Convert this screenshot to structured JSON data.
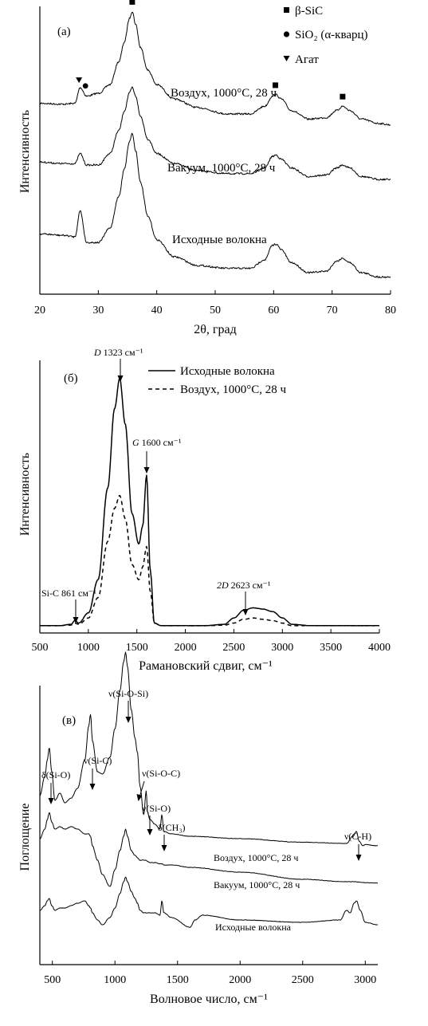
{
  "chart_data": [
    {
      "type": "line",
      "panel": "(а)",
      "xlabel": "2θ, град",
      "ylabel": "Интенсивность",
      "xlim": [
        20,
        80
      ],
      "xticks": [
        20,
        30,
        40,
        50,
        60,
        70,
        80
      ],
      "legend": [
        {
          "marker": "square",
          "label": "β-SiC"
        },
        {
          "marker": "circle",
          "label": "SiO₂ (α-кварц)"
        },
        {
          "marker": "triangle-down",
          "label": "Агат"
        }
      ],
      "series": [
        {
          "name": "Воздух, 1000°C, 28 ч",
          "x": [
            20,
            24,
            26,
            26.9,
            28,
            30,
            32,
            33.5,
            34.5,
            35.3,
            35.8,
            36.4,
            37.2,
            38.5,
            40,
            43,
            47,
            52,
            56,
            58.5,
            59.8,
            60.4,
            61.3,
            63,
            66,
            69,
            70.8,
            71.8,
            73,
            75,
            78,
            80
          ],
          "y": [
            0.665,
            0.662,
            0.665,
            0.72,
            0.69,
            0.7,
            0.73,
            0.81,
            0.88,
            0.96,
            0.985,
            0.94,
            0.86,
            0.78,
            0.73,
            0.68,
            0.65,
            0.628,
            0.628,
            0.655,
            0.69,
            0.695,
            0.68,
            0.64,
            0.61,
            0.615,
            0.64,
            0.655,
            0.64,
            0.61,
            0.595,
            0.59
          ]
        },
        {
          "name": "Вакуум, 1000°C, 28 ч",
          "x": [
            20,
            24,
            26,
            26.9,
            28,
            30,
            32,
            33.5,
            34.5,
            35.3,
            35.8,
            36.4,
            37.2,
            38.5,
            40,
            43,
            47,
            52,
            56,
            58.5,
            59.8,
            60.4,
            61.3,
            63,
            66,
            69,
            70.8,
            71.8,
            73,
            75,
            78,
            80
          ],
          "y": [
            0.46,
            0.455,
            0.455,
            0.49,
            0.45,
            0.45,
            0.49,
            0.57,
            0.64,
            0.7,
            0.72,
            0.69,
            0.62,
            0.54,
            0.49,
            0.455,
            0.43,
            0.42,
            0.42,
            0.44,
            0.48,
            0.485,
            0.47,
            0.44,
            0.41,
            0.415,
            0.44,
            0.45,
            0.44,
            0.41,
            0.4,
            0.4
          ]
        },
        {
          "name": "Исходные волокна",
          "x": [
            20,
            24,
            26,
            26.9,
            28,
            30,
            32,
            33.5,
            34.5,
            35.3,
            35.8,
            36.4,
            37.2,
            38.5,
            40,
            43,
            47,
            52,
            56,
            58.5,
            59.8,
            60.4,
            61.3,
            63,
            66,
            69,
            70.8,
            71.8,
            73,
            75,
            78,
            80
          ],
          "y": [
            0.21,
            0.205,
            0.2,
            0.29,
            0.18,
            0.18,
            0.23,
            0.34,
            0.44,
            0.53,
            0.56,
            0.5,
            0.39,
            0.27,
            0.19,
            0.13,
            0.1,
            0.09,
            0.09,
            0.12,
            0.17,
            0.175,
            0.155,
            0.11,
            0.075,
            0.08,
            0.115,
            0.125,
            0.11,
            0.075,
            0.06,
            0.06
          ]
        }
      ],
      "markers": [
        {
          "type": "triangle-down",
          "x": 26.7
        },
        {
          "type": "circle",
          "x": 27.8
        },
        {
          "type": "square",
          "x": 35.8
        },
        {
          "type": "square",
          "x": 60.3
        },
        {
          "type": "square",
          "x": 71.8
        }
      ]
    },
    {
      "type": "line",
      "panel": "(б)",
      "xlabel": "Рамановский сдвиг, см⁻¹",
      "ylabel": "Интенсивность",
      "xlim": [
        500,
        4000
      ],
      "xticks": [
        500,
        1000,
        1500,
        2000,
        2500,
        3000,
        3500,
        4000
      ],
      "series": [
        {
          "name": "Исходные волокна",
          "style": "solid",
          "x": [
            500,
            700,
            820,
            861,
            900,
            1000,
            1100,
            1200,
            1270,
            1323,
            1380,
            1450,
            1520,
            1560,
            1600,
            1640,
            1680,
            1750,
            2200,
            2400,
            2500,
            2600,
            2700,
            2800,
            2900,
            3000,
            3100,
            3300,
            4000
          ],
          "y": [
            0.01,
            0.01,
            0.015,
            0.03,
            0.02,
            0.06,
            0.19,
            0.55,
            0.86,
            0.98,
            0.8,
            0.45,
            0.33,
            0.4,
            0.6,
            0.22,
            0.02,
            0.01,
            0.01,
            0.015,
            0.04,
            0.07,
            0.08,
            0.075,
            0.065,
            0.04,
            0.015,
            0.01,
            0.01
          ]
        },
        {
          "name": "Воздух, 1000°C, 28 ч",
          "style": "dashed",
          "x": [
            500,
            700,
            820,
            861,
            900,
            1000,
            1100,
            1200,
            1270,
            1323,
            1380,
            1450,
            1520,
            1560,
            1600,
            1640,
            1680,
            1750,
            2200,
            2400,
            2500,
            2600,
            2700,
            2800,
            2900,
            3000,
            3100,
            3300,
            4000
          ],
          "y": [
            0.01,
            0.01,
            0.012,
            0.02,
            0.015,
            0.04,
            0.12,
            0.34,
            0.47,
            0.52,
            0.43,
            0.25,
            0.19,
            0.24,
            0.32,
            0.14,
            0.02,
            0.01,
            0.01,
            0.012,
            0.02,
            0.035,
            0.04,
            0.035,
            0.03,
            0.02,
            0.01,
            0.01,
            0.01
          ]
        }
      ],
      "annotations": [
        {
          "label_prefix": "D",
          "label": " 1323 см⁻¹",
          "x": 1323
        },
        {
          "label_prefix": "G",
          "label": " 1600 см⁻¹",
          "x": 1600
        },
        {
          "label_prefix": "",
          "label": "Si-C 861 см⁻¹",
          "x": 861
        },
        {
          "label_prefix": "2D",
          "label": " 2623 см⁻¹",
          "x": 2623
        }
      ]
    },
    {
      "type": "line",
      "panel": "(в)",
      "xlabel": "Волновое число, см⁻¹",
      "ylabel": "Поглощение",
      "xlim": [
        400,
        3100
      ],
      "xticks": [
        500,
        1000,
        1500,
        2000,
        2500,
        3000
      ],
      "series": [
        {
          "name": "Воздух, 1000°C, 28 ч",
          "x": [
            400,
            440,
            460,
            475,
            495,
            520,
            560,
            600,
            650,
            700,
            760,
            790,
            805,
            820,
            860,
            900,
            960,
            1000,
            1040,
            1070,
            1085,
            1100,
            1130,
            1160,
            1180,
            1200,
            1230,
            1250,
            1260,
            1280,
            1320,
            1360,
            1375,
            1390,
            1450,
            1600,
            2000,
            2500,
            2850,
            2900,
            2930,
            2950,
            2980,
            3000,
            3100
          ],
          "y": [
            0.4,
            0.48,
            0.55,
            0.6,
            0.5,
            0.38,
            0.41,
            0.37,
            0.39,
            0.43,
            0.55,
            0.69,
            0.74,
            0.63,
            0.5,
            0.49,
            0.56,
            0.68,
            0.84,
            0.96,
            1.0,
            0.94,
            0.76,
            0.64,
            0.58,
            0.44,
            0.32,
            0.42,
            0.33,
            0.3,
            0.28,
            0.26,
            0.32,
            0.25,
            0.24,
            0.23,
            0.22,
            0.205,
            0.2,
            0.23,
            0.25,
            0.21,
            0.19,
            0.195,
            0.19
          ]
        },
        {
          "name": "Вакуум, 1000°C, 28 ч",
          "x": [
            400,
            440,
            460,
            475,
            495,
            520,
            560,
            600,
            650,
            700,
            760,
            790,
            805,
            820,
            860,
            900,
            960,
            1000,
            1040,
            1070,
            1085,
            1100,
            1130,
            1160,
            1180,
            1200,
            1230,
            1250,
            1260,
            1280,
            1320,
            1360,
            1375,
            1390,
            1450,
            1600,
            2000,
            2500,
            2850,
            2900,
            2930,
            2950,
            2980,
            3000,
            3100
          ],
          "y": [
            0.22,
            0.26,
            0.3,
            0.33,
            0.29,
            0.26,
            0.27,
            0.26,
            0.27,
            0.26,
            0.24,
            0.24,
            0.23,
            0.19,
            0.13,
            0.07,
            0.02,
            0.09,
            0.17,
            0.23,
            0.26,
            0.23,
            0.17,
            0.15,
            0.14,
            0.13,
            0.13,
            0.13,
            0.125,
            0.12,
            0.12,
            0.115,
            0.115,
            0.11,
            0.11,
            0.1,
            0.08,
            0.05,
            0.04,
            0.04,
            0.04,
            0.038,
            0.036,
            0.036,
            0.035
          ]
        },
        {
          "name": "Исходные волокна",
          "x": [
            400,
            440,
            460,
            475,
            495,
            520,
            560,
            600,
            650,
            700,
            760,
            790,
            805,
            820,
            860,
            900,
            960,
            1000,
            1040,
            1070,
            1085,
            1100,
            1130,
            1160,
            1180,
            1200,
            1230,
            1250,
            1260,
            1280,
            1320,
            1360,
            1375,
            1390,
            1450,
            1600,
            1640,
            1700,
            2000,
            2500,
            2800,
            2850,
            2880,
            2910,
            2930,
            2960,
            3000,
            3100
          ],
          "y": [
            -0.08,
            -0.06,
            -0.04,
            -0.03,
            -0.06,
            -0.08,
            -0.07,
            -0.07,
            -0.06,
            -0.05,
            -0.04,
            -0.06,
            -0.07,
            -0.09,
            -0.12,
            -0.14,
            -0.11,
            -0.07,
            -0.01,
            0.04,
            0.06,
            0.04,
            0.0,
            -0.03,
            -0.05,
            -0.08,
            -0.09,
            -0.09,
            -0.09,
            -0.09,
            -0.09,
            -0.1,
            -0.04,
            -0.09,
            -0.11,
            -0.15,
            -0.12,
            -0.1,
            -0.12,
            -0.13,
            -0.12,
            -0.08,
            -0.09,
            -0.05,
            -0.04,
            -0.08,
            -0.13,
            -0.14
          ]
        }
      ],
      "annotations": [
        {
          "label": "ν(Si-O-Si)",
          "x": 1085
        },
        {
          "label": "δ(Si-O)",
          "x": 460
        },
        {
          "label": "ν(Si-C)",
          "x": 805
        },
        {
          "label": "ν(Si-O-C)",
          "x": 1160
        },
        {
          "label": "ν(Si-O)",
          "x": 1250
        },
        {
          "label": "δ(CH₃)",
          "x": 1375
        },
        {
          "label": "ν(C-H)",
          "x": 2930
        }
      ]
    }
  ]
}
